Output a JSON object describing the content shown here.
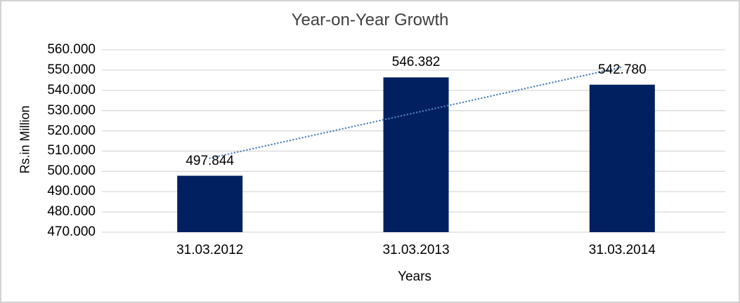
{
  "chart_data": {
    "type": "bar",
    "title": "Year-on-Year Growth",
    "xlabel": "Years",
    "ylabel": "Rs.in Million",
    "categories": [
      "31.03.2012",
      "31.03.2013",
      "31.03.2014"
    ],
    "values": [
      497.844,
      546.382,
      542.78
    ],
    "value_labels": [
      "497.844",
      "546.382",
      "542.780"
    ],
    "ylim": [
      470,
      560
    ],
    "ytick_step": 10,
    "ytick_labels": [
      "470.000",
      "480.000",
      "490.000",
      "500.000",
      "510.000",
      "520.000",
      "530.000",
      "540.000",
      "550.000",
      "560.000"
    ],
    "grid": true,
    "legend": "none",
    "trendline": {
      "type": "linear",
      "style": "dotted",
      "color": "#4F81BD"
    },
    "colors": {
      "bar": "#002060",
      "gridline": "#D9D9D9",
      "title_text": "#404040",
      "axis_text": "#000000",
      "frame_border": "#D3D3D3"
    }
  }
}
